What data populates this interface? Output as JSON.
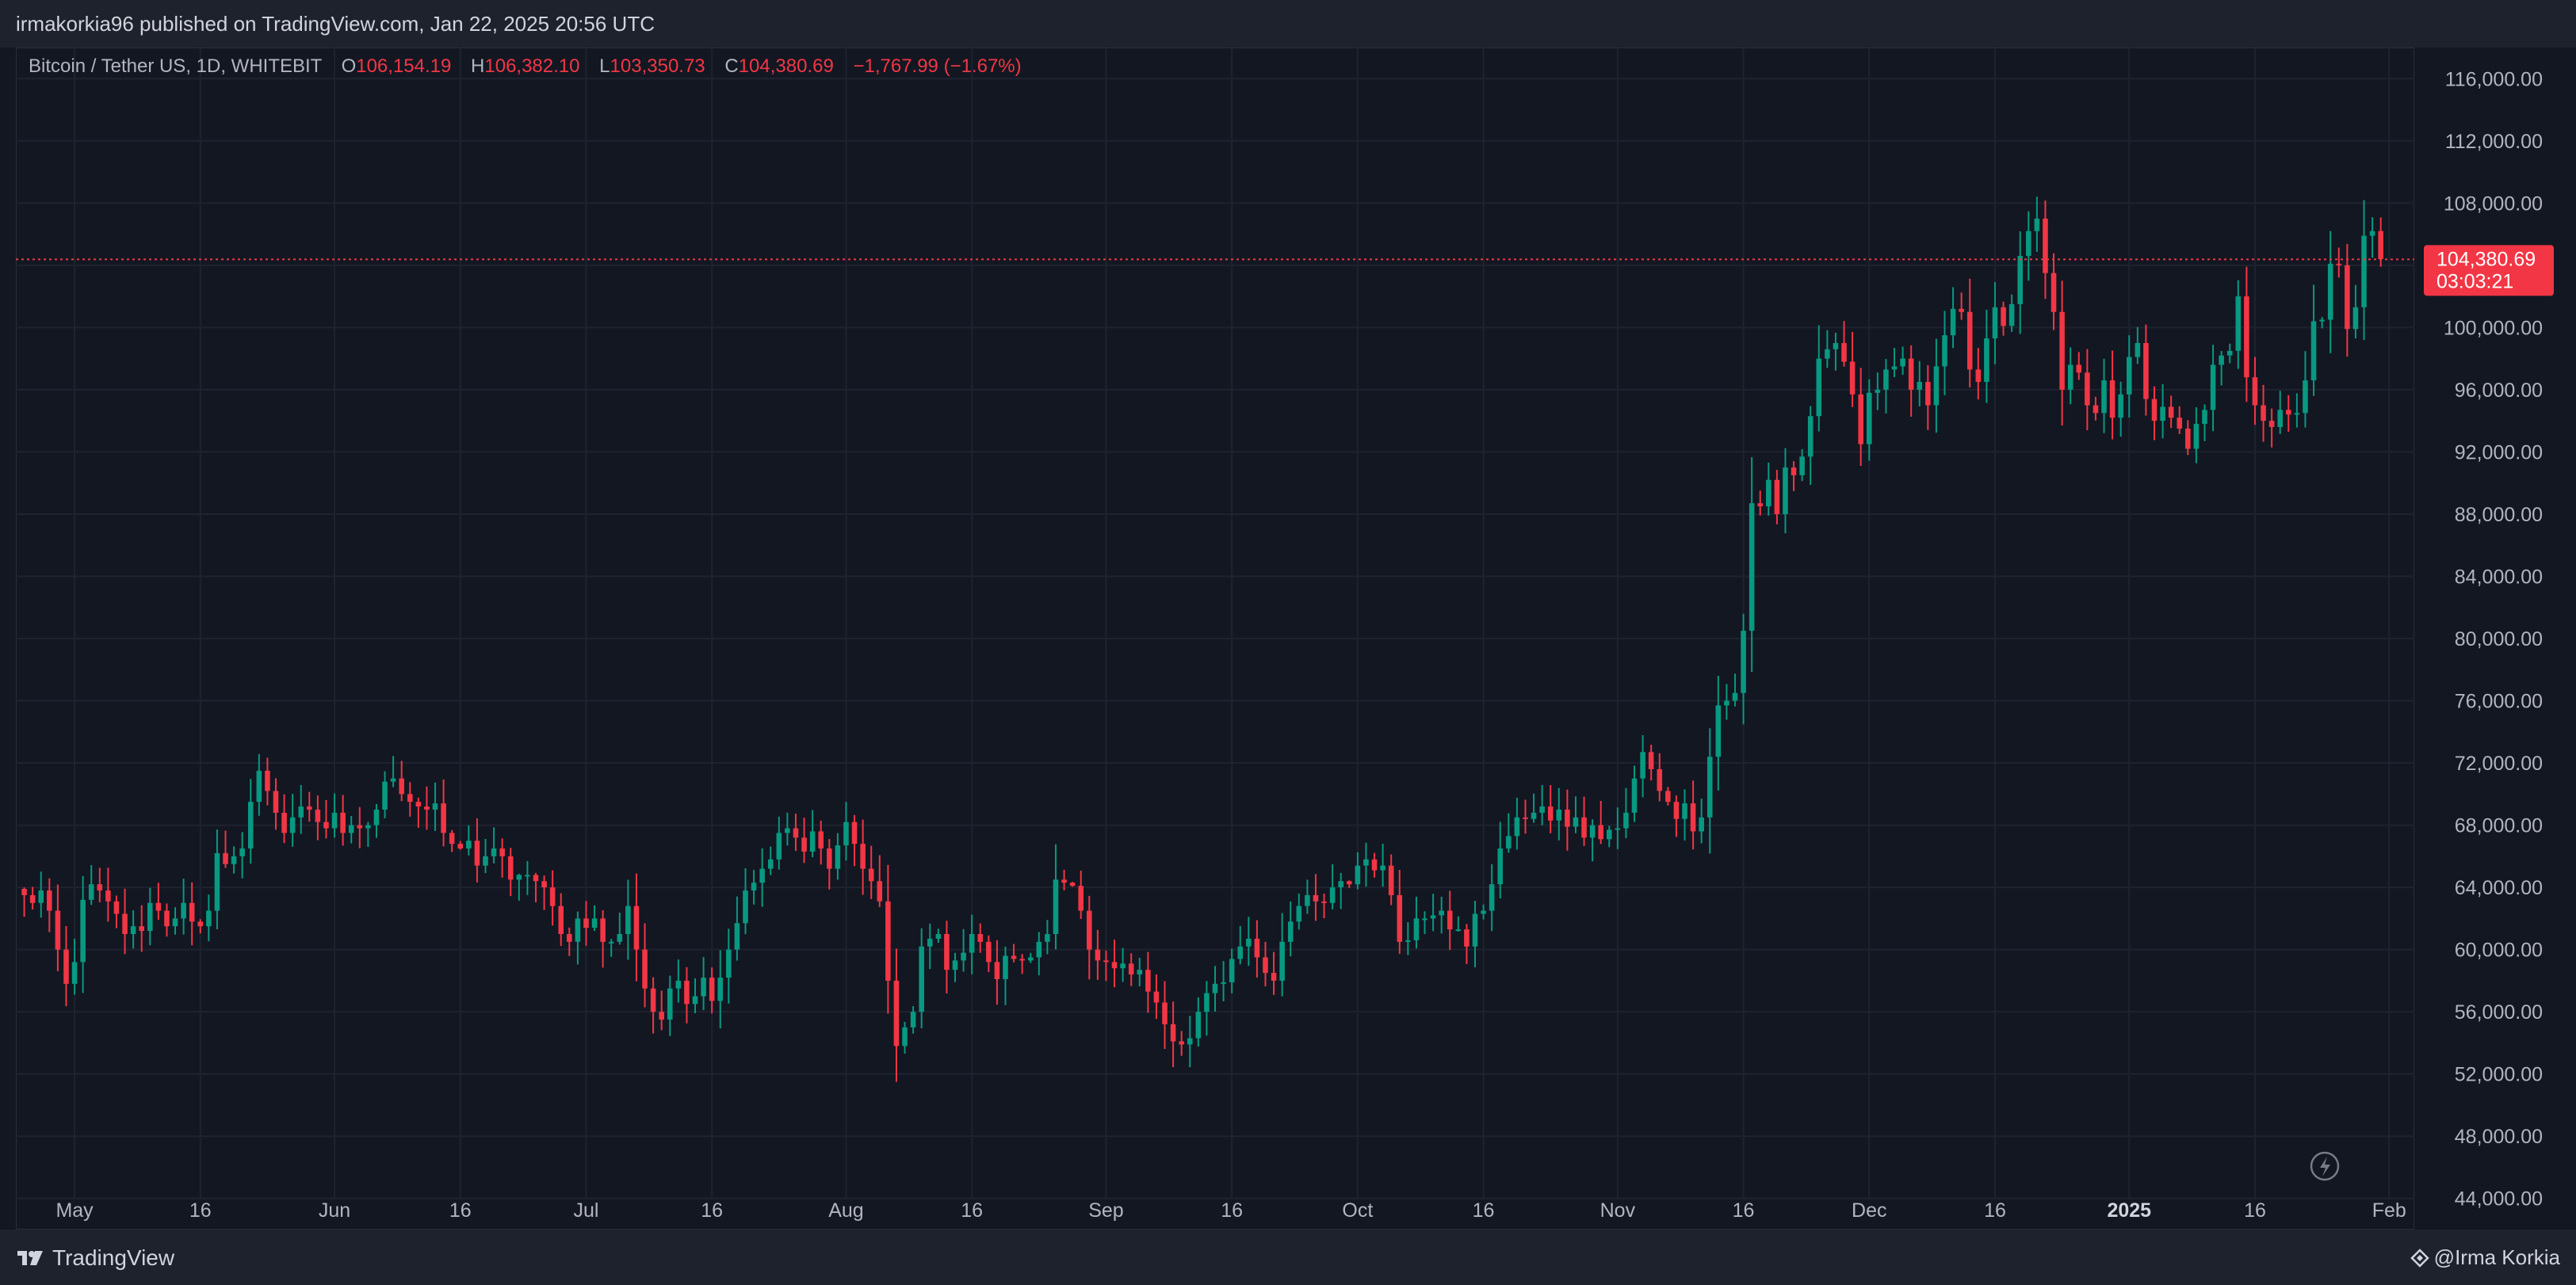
{
  "header": {
    "publish_line": "irmakorkia96 published on TradingView.com, Jan 22, 2025 20:56 UTC"
  },
  "symbol": {
    "name": "Bitcoin / Tether US, 1D, WHITEBIT",
    "o_label": "O",
    "o_value": "106,154.19",
    "h_label": "H",
    "h_value": "106,382.10",
    "l_label": "L",
    "l_value": "103,350.73",
    "c_label": "C",
    "c_value": "104,380.69",
    "change": "−1,767.99 (−1.67%)"
  },
  "price_tag": {
    "price": "104,380.69",
    "countdown": "03:03:21"
  },
  "footer": {
    "brand": "TradingView",
    "author": "@Irma Korkia"
  },
  "colors": {
    "up": "#089981",
    "down": "#f23645",
    "background": "#131722",
    "grid": "#1f2330",
    "text": "#b2b5be"
  },
  "icons": {
    "brand": "tradingview-logo-icon",
    "author": "tradingview-diamond-icon",
    "flash": "flash-icon"
  },
  "chart_data": {
    "type": "candlestick",
    "title": "Bitcoin / Tether US, 1D, WHITEBIT",
    "ylim": [
      42000,
      118000
    ],
    "xlim": [
      "2024-04-24",
      "2025-02-04"
    ],
    "last_price": 104380.69,
    "y_ticks": [
      "116,000.00",
      "112,000.00",
      "108,000.00",
      "104,000.00",
      "100,000.00",
      "96,000.00",
      "92,000.00",
      "88,000.00",
      "84,000.00",
      "80,000.00",
      "76,000.00",
      "72,000.00",
      "68,000.00",
      "64,000.00",
      "60,000.00",
      "56,000.00",
      "52,000.00",
      "48,000.00",
      "44,000.00"
    ],
    "y_tick_values": [
      116000,
      112000,
      108000,
      104000,
      100000,
      96000,
      92000,
      88000,
      84000,
      80000,
      76000,
      72000,
      68000,
      64000,
      60000,
      56000,
      52000,
      48000,
      44000
    ],
    "x_ticks": [
      {
        "date": "2024-05-01",
        "label": "May"
      },
      {
        "date": "2024-05-16",
        "label": "16"
      },
      {
        "date": "2024-06-01",
        "label": "Jun"
      },
      {
        "date": "2024-06-16",
        "label": "16"
      },
      {
        "date": "2024-07-01",
        "label": "Jul"
      },
      {
        "date": "2024-07-16",
        "label": "16"
      },
      {
        "date": "2024-08-01",
        "label": "Aug"
      },
      {
        "date": "2024-08-16",
        "label": "16"
      },
      {
        "date": "2024-09-01",
        "label": "Sep"
      },
      {
        "date": "2024-09-16",
        "label": "16"
      },
      {
        "date": "2024-10-01",
        "label": "Oct"
      },
      {
        "date": "2024-10-16",
        "label": "16"
      },
      {
        "date": "2024-11-01",
        "label": "Nov"
      },
      {
        "date": "2024-11-16",
        "label": "16"
      },
      {
        "date": "2024-12-01",
        "label": "Dec"
      },
      {
        "date": "2024-12-16",
        "label": "16"
      },
      {
        "date": "2025-01-01",
        "label": "2025",
        "bold": true
      },
      {
        "date": "2025-01-16",
        "label": "16"
      },
      {
        "date": "2025-02-01",
        "label": "Feb"
      }
    ],
    "start_date": "2024-04-25",
    "closes": [
      63500,
      63000,
      63800,
      62500,
      60000,
      57800,
      59200,
      63200,
      64200,
      63800,
      63100,
      62300,
      61000,
      61500,
      61200,
      63000,
      62500,
      61500,
      62000,
      63000,
      61800,
      61500,
      62500,
      66200,
      65500,
      66000,
      66500,
      69500,
      71500,
      70200,
      68800,
      67500,
      68500,
      69200,
      69000,
      68200,
      67800,
      68800,
      67500,
      68000,
      67800,
      68000,
      69000,
      70800,
      71000,
      70000,
      69500,
      69200,
      69000,
      69400,
      67500,
      66800,
      66500,
      67000,
      65400,
      66000,
      66500,
      66000,
      64500,
      64800,
      64800,
      64400,
      64000,
      62800,
      61000,
      60500,
      62000,
      61400,
      62000,
      60500,
      60500,
      61000,
      62800,
      60000,
      57500,
      56000,
      55500,
      57500,
      58000,
      56500,
      57000,
      58200,
      56700,
      58200,
      60000,
      61700,
      63800,
      64300,
      65200,
      65800,
      67500,
      67800,
      67200,
      66300,
      67600,
      66500,
      65200,
      66700,
      68200,
      66800,
      65200,
      64400,
      63100,
      58000,
      53800,
      55000,
      56000,
      60200,
      60700,
      61000,
      58700,
      59300,
      59800,
      61000,
      60500,
      59200,
      58100,
      59600,
      59400,
      59300,
      59500,
      60500,
      61000,
      64500,
      64300,
      64100,
      62500,
      60000,
      59300,
      59200,
      58800,
      59100,
      58400,
      58700,
      57300,
      56600,
      55200,
      54100,
      53900,
      54300,
      56000,
      57200,
      57800,
      57900,
      59400,
      60200,
      60700,
      59500,
      58500,
      58000,
      60500,
      61800,
      62800,
      63500,
      63100,
      63000,
      64000,
      64400,
      64200,
      65400,
      65800,
      65100,
      65400,
      63500,
      60500,
      60600,
      62000,
      62000,
      62200,
      62500,
      61300,
      61300,
      60200,
      62300,
      62500,
      64200,
      66500,
      67300,
      68500,
      68400,
      68800,
      69200,
      68300,
      69000,
      67900,
      68500,
      67200,
      68000,
      67100,
      67700,
      67800,
      68800,
      71000,
      72700,
      71600,
      70200,
      69500,
      68400,
      69400,
      67600,
      68500,
      72400,
      75700,
      76000,
      76500,
      80500,
      88700,
      88500,
      90200,
      88000,
      91000,
      90500,
      91700,
      94300,
      98000,
      98600,
      99000,
      97800,
      95700,
      92500,
      95800,
      96000,
      97300,
      97500,
      98000,
      96000,
      96500,
      95000,
      97500,
      99500,
      101200,
      101000,
      97300,
      96500,
      99300,
      101300,
      100100,
      101500,
      104600,
      106200,
      107000,
      103500,
      101000,
      96000,
      97600,
      97100,
      95000,
      94500,
      96600,
      94200,
      95700,
      98100,
      99000,
      95400,
      94000,
      94900,
      94200,
      93500,
      92200,
      93800,
      94700,
      97600,
      98200,
      98500,
      102000,
      96800,
      95000,
      94000,
      93600,
      94700,
      94400,
      94500,
      96600,
      100400,
      100500,
      104100,
      104000,
      99900,
      101300,
      105900,
      106200,
      104400
    ]
  }
}
